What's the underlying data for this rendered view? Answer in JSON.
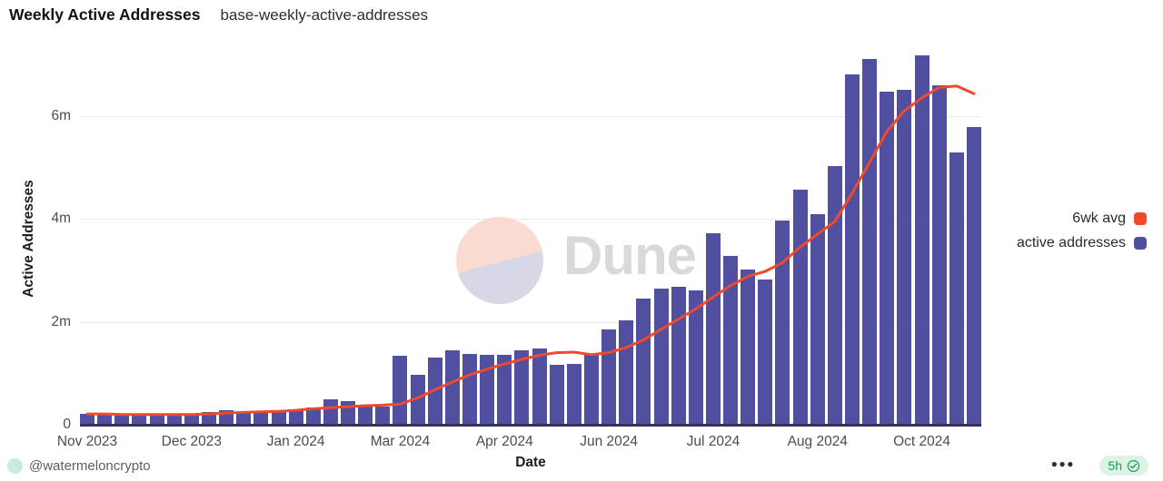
{
  "header": {
    "title": "Weekly Active Addresses",
    "subtitle": "base-weekly-active-addresses"
  },
  "watermark": {
    "brand": "Dune"
  },
  "legend": [
    {
      "label": "6wk avg",
      "color": "#f1492a"
    },
    {
      "label": "active addresses",
      "color": "#514f9f"
    }
  ],
  "footer": {
    "author": "@watermeloncrypto",
    "more_label": "●●●",
    "badge": {
      "time_ago": "5h",
      "icon": "verified-check"
    }
  },
  "chart_data": {
    "type": "bar",
    "title": "Weekly Active Addresses",
    "subtitle": "base-weekly-active-addresses",
    "xlabel": "Date",
    "ylabel": "Active Addresses",
    "unit": "millions of addresses",
    "ylim": [
      0,
      7.28
    ],
    "grid": "horizontal",
    "legend_position": "right",
    "y_tick_values": [
      0,
      2,
      4,
      6
    ],
    "y_tick_labels": [
      "0",
      "2m",
      "4m",
      "6m"
    ],
    "x_tick_labels": [
      "Nov 2023",
      "Dec 2023",
      "Jan 2024",
      "Mar 2024",
      "Apr 2024",
      "Jun 2024",
      "Jul 2024",
      "Aug 2024",
      "Oct 2024"
    ],
    "x_tick_indices": [
      0,
      6,
      12,
      18,
      24,
      30,
      36,
      42,
      48
    ],
    "x_description": "52 weekly bars, Nov 2023 through Nov 2024",
    "series": [
      {
        "name": "active addresses",
        "type": "bar",
        "color": "#514f9f",
        "values": [
          0.21,
          0.2,
          0.2,
          0.2,
          0.2,
          0.21,
          0.21,
          0.25,
          0.28,
          0.23,
          0.24,
          0.29,
          0.3,
          0.34,
          0.49,
          0.45,
          0.39,
          0.35,
          1.34,
          0.97,
          1.3,
          1.45,
          1.38,
          1.36,
          1.35,
          1.45,
          1.48,
          1.17,
          1.18,
          1.36,
          1.85,
          2.03,
          2.45,
          2.64,
          2.68,
          2.61,
          3.72,
          3.28,
          3.01,
          2.82,
          3.97,
          4.57,
          4.09,
          5.03,
          6.8,
          7.1,
          6.47,
          6.5,
          7.18,
          6.6,
          5.29,
          5.78
        ]
      },
      {
        "name": "6wk avg",
        "type": "line",
        "color": "#f1492a",
        "values": [
          0.21,
          0.21,
          0.2,
          0.2,
          0.2,
          0.2,
          0.2,
          0.21,
          0.23,
          0.24,
          0.25,
          0.26,
          0.28,
          0.31,
          0.33,
          0.35,
          0.37,
          0.38,
          0.4,
          0.52,
          0.68,
          0.83,
          0.97,
          1.08,
          1.18,
          1.27,
          1.35,
          1.4,
          1.41,
          1.36,
          1.4,
          1.5,
          1.65,
          1.85,
          2.05,
          2.25,
          2.48,
          2.7,
          2.88,
          2.98,
          3.15,
          3.45,
          3.7,
          3.95,
          4.5,
          5.1,
          5.7,
          6.1,
          6.35,
          6.55,
          6.58,
          6.43
        ]
      }
    ]
  }
}
